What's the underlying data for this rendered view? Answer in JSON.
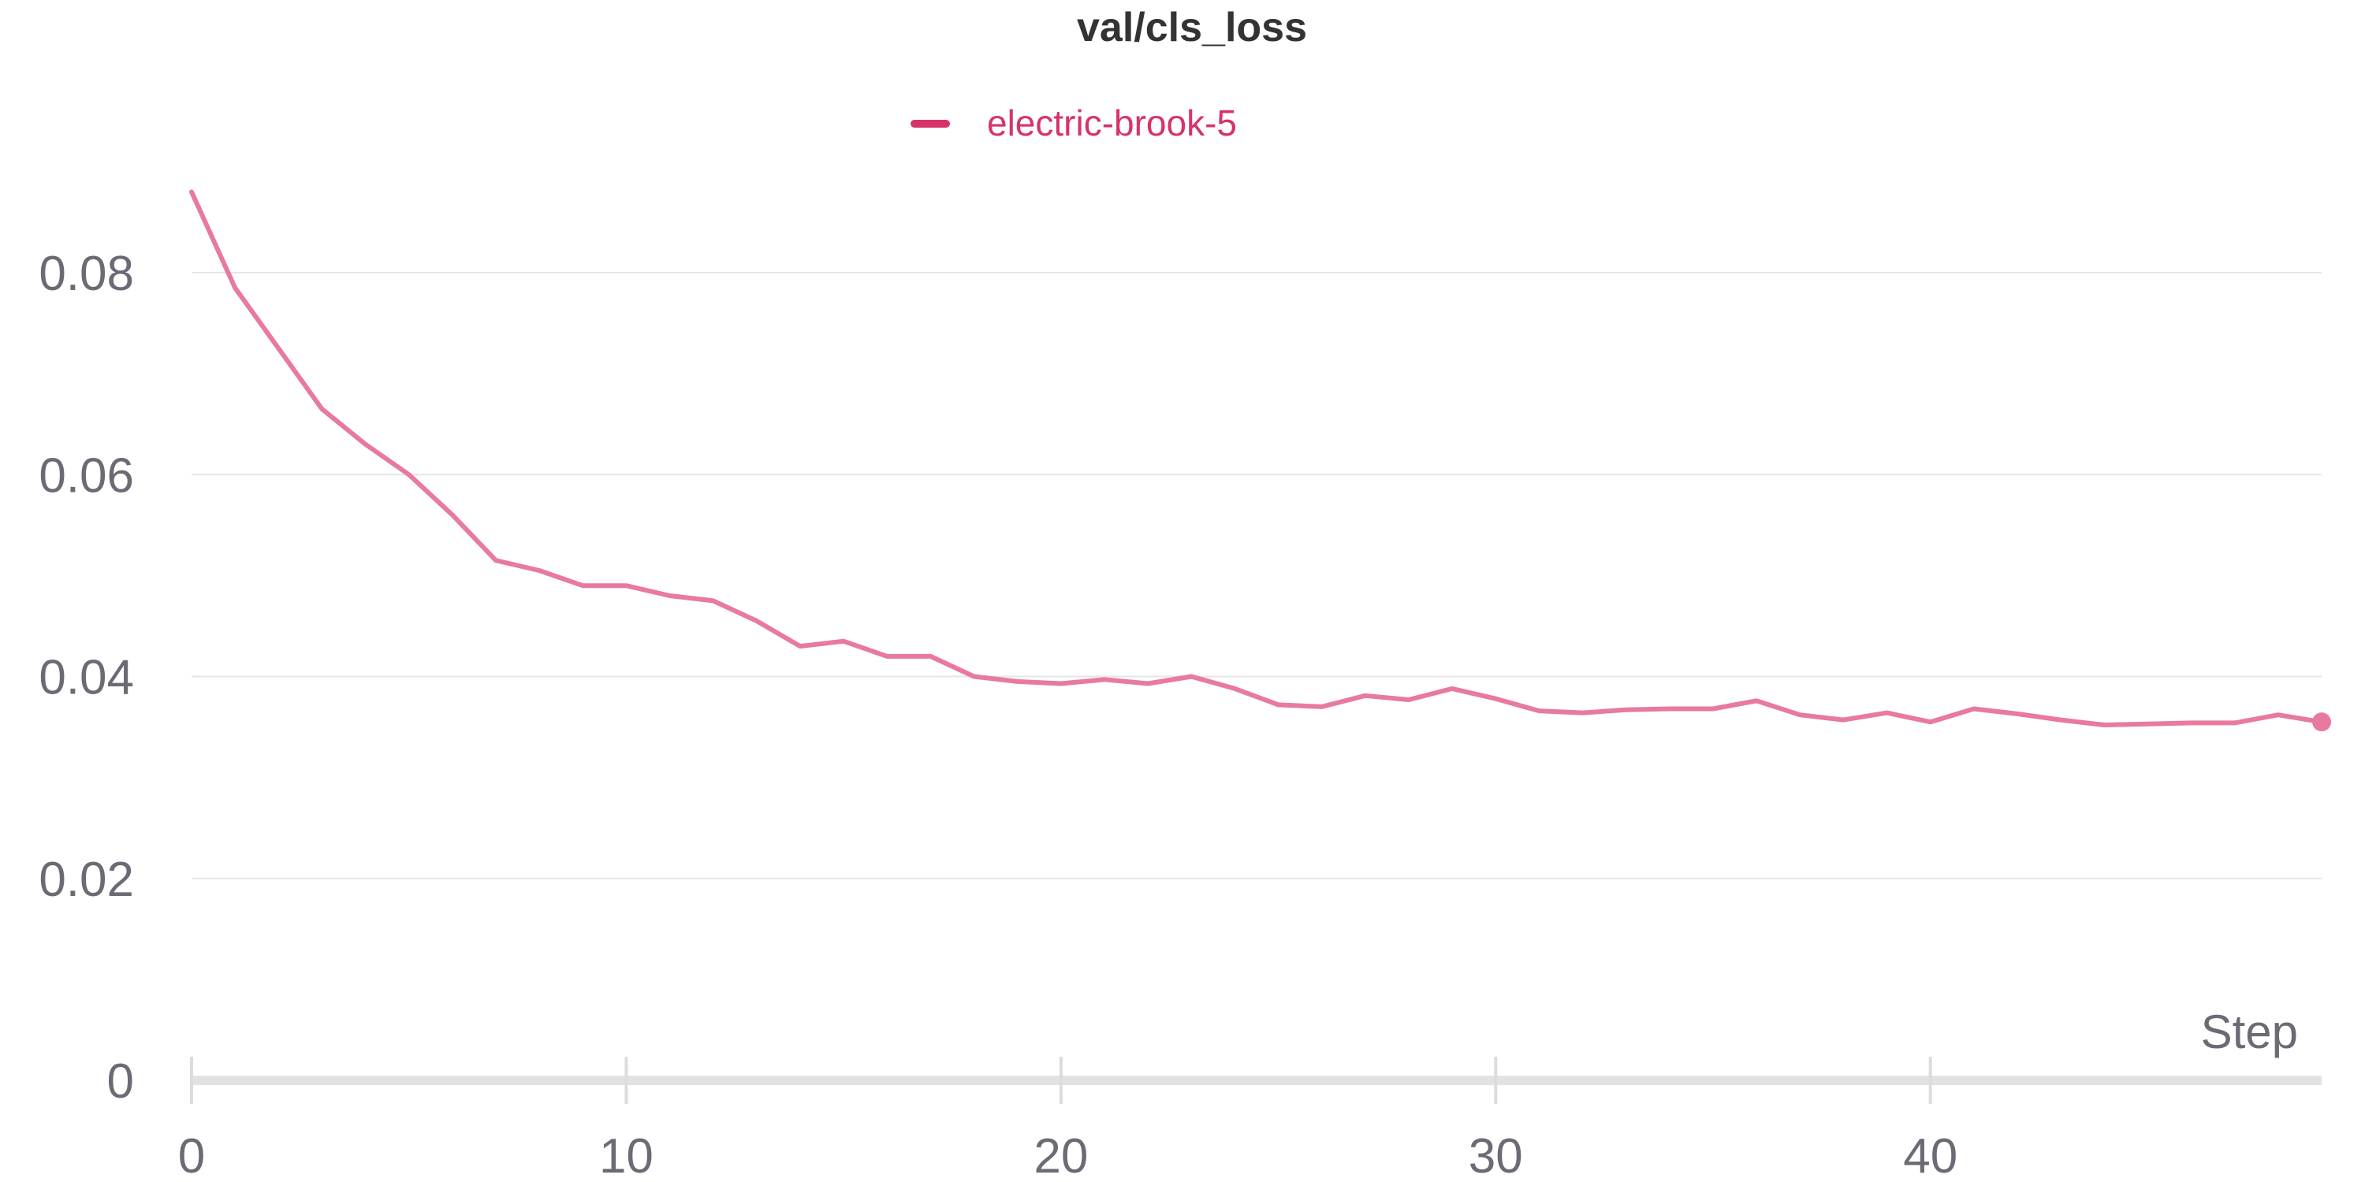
{
  "chart_data": {
    "type": "line",
    "title": "val/cls_loss",
    "xlabel": "Step",
    "ylabel": "",
    "xlim": [
      0,
      49
    ],
    "ylim": [
      0,
      0.09
    ],
    "x_ticks": [
      0,
      10,
      20,
      30,
      40
    ],
    "y_ticks": [
      0,
      0.02,
      0.04,
      0.06,
      0.08
    ],
    "x_tick_labels": [
      "0",
      "10",
      "20",
      "30",
      "40"
    ],
    "y_tick_labels": [
      "0",
      "0.02",
      "0.04",
      "0.06",
      "0.08"
    ],
    "grid": "horizontal",
    "legend_position": "top-center",
    "series": [
      {
        "name": "electric-brook-5",
        "color": "#e8799f",
        "legend_color": "#d6336c",
        "x": [
          0,
          1,
          2,
          3,
          4,
          5,
          6,
          7,
          8,
          9,
          10,
          11,
          12,
          13,
          14,
          15,
          16,
          17,
          18,
          19,
          20,
          21,
          22,
          23,
          24,
          25,
          26,
          27,
          28,
          29,
          30,
          31,
          32,
          33,
          34,
          35,
          36,
          37,
          38,
          39,
          40,
          41,
          42,
          43,
          44,
          45,
          46,
          47,
          48,
          49
        ],
        "values": [
          0.088,
          0.0785,
          0.0725,
          0.0665,
          0.063,
          0.06,
          0.056,
          0.0515,
          0.0505,
          0.049,
          0.049,
          0.048,
          0.0475,
          0.0455,
          0.043,
          0.0435,
          0.042,
          0.042,
          0.04,
          0.0395,
          0.0393,
          0.0397,
          0.0393,
          0.04,
          0.0388,
          0.0372,
          0.037,
          0.0381,
          0.0377,
          0.0388,
          0.0378,
          0.0366,
          0.0364,
          0.0367,
          0.0368,
          0.0368,
          0.0376,
          0.0362,
          0.0357,
          0.0364,
          0.0355,
          0.0368,
          0.0363,
          0.0357,
          0.0352,
          0.0353,
          0.0354,
          0.0354,
          0.0362,
          0.0355
        ]
      }
    ]
  }
}
